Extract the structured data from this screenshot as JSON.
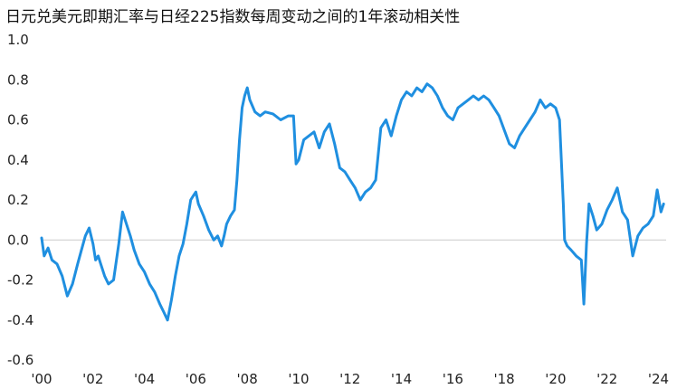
{
  "chart_data": {
    "type": "line",
    "title": "日元兑美元即期汇率与日经225指数每周变动之间的1年滚动相关性",
    "xlabel": "",
    "ylabel": "",
    "xlim": [
      2000,
      2024.3
    ],
    "ylim": [
      -0.6,
      1.0
    ],
    "y_ticks": [
      1.0,
      0.8,
      0.6,
      0.4,
      0.2,
      0.0,
      -0.2,
      -0.4,
      -0.6
    ],
    "y_tick_labels": [
      "1.0",
      "0.8",
      "0.6",
      "0.4",
      "0.2",
      "0.0",
      "-0.2",
      "-0.4",
      "-0.6"
    ],
    "x_ticks": [
      2000,
      2002,
      2004,
      2006,
      2008,
      2010,
      2012,
      2014,
      2016,
      2018,
      2020,
      2022,
      2024
    ],
    "x_tick_labels": [
      "'00",
      "'02",
      "'04",
      "'06",
      "'08",
      "'10",
      "'12",
      "'14",
      "'16",
      "'18",
      "'20",
      "'22",
      "'24"
    ],
    "zero_line": true,
    "grid": false,
    "line_color": "#1f8fe0",
    "zero_line_color": "#cccccc",
    "series": [
      {
        "x": [
          2000.0,
          2000.1,
          2000.25,
          2000.4,
          2000.6,
          2000.8,
          2001.0,
          2001.2,
          2001.4,
          2001.55,
          2001.7,
          2001.85,
          2002.0,
          2002.1,
          2002.2,
          2002.3,
          2002.45,
          2002.6,
          2002.8,
          2003.0,
          2003.15,
          2003.3,
          2003.45,
          2003.6,
          2003.8,
          2004.0,
          2004.2,
          2004.4,
          2004.6,
          2004.75,
          2004.9,
          2005.05,
          2005.2,
          2005.35,
          2005.5,
          2005.65,
          2005.8,
          2005.9,
          2006.0,
          2006.1,
          2006.3,
          2006.5,
          2006.7,
          2006.85,
          2007.0,
          2007.1,
          2007.2,
          2007.35,
          2007.5,
          2007.6,
          2007.7,
          2007.8,
          2007.9,
          2008.0,
          2008.1,
          2008.3,
          2008.5,
          2008.7,
          2009.0,
          2009.3,
          2009.6,
          2009.8,
          2009.9,
          2010.0,
          2010.2,
          2010.4,
          2010.6,
          2010.8,
          2011.0,
          2011.2,
          2011.4,
          2011.6,
          2011.8,
          2012.0,
          2012.2,
          2012.4,
          2012.6,
          2012.8,
          2013.0,
          2013.2,
          2013.4,
          2013.6,
          2013.8,
          2014.0,
          2014.2,
          2014.4,
          2014.6,
          2014.8,
          2015.0,
          2015.2,
          2015.4,
          2015.6,
          2015.8,
          2016.0,
          2016.2,
          2016.4,
          2016.6,
          2016.8,
          2017.0,
          2017.2,
          2017.4,
          2017.6,
          2017.8,
          2018.0,
          2018.2,
          2018.4,
          2018.6,
          2018.8,
          2019.0,
          2019.2,
          2019.4,
          2019.6,
          2019.8,
          2020.0,
          2020.15,
          2020.3,
          2020.35,
          2020.45,
          2020.6,
          2020.8,
          2021.0,
          2021.1,
          2021.2,
          2021.3,
          2021.45,
          2021.6,
          2021.8,
          2022.0,
          2022.2,
          2022.4,
          2022.6,
          2022.8,
          2023.0,
          2023.2,
          2023.4,
          2023.6,
          2023.8,
          2023.95,
          2024.1,
          2024.2
        ],
        "values": [
          0.01,
          -0.08,
          -0.04,
          -0.1,
          -0.12,
          -0.18,
          -0.28,
          -0.22,
          -0.12,
          -0.05,
          0.02,
          0.06,
          -0.02,
          -0.1,
          -0.08,
          -0.12,
          -0.18,
          -0.22,
          -0.2,
          -0.02,
          0.14,
          0.08,
          0.02,
          -0.05,
          -0.12,
          -0.16,
          -0.22,
          -0.26,
          -0.32,
          -0.36,
          -0.4,
          -0.3,
          -0.18,
          -0.08,
          -0.02,
          0.08,
          0.2,
          0.22,
          0.24,
          0.18,
          0.12,
          0.05,
          0.0,
          0.02,
          -0.03,
          0.02,
          0.08,
          0.12,
          0.15,
          0.3,
          0.5,
          0.66,
          0.72,
          0.76,
          0.7,
          0.64,
          0.62,
          0.64,
          0.63,
          0.6,
          0.62,
          0.62,
          0.38,
          0.4,
          0.5,
          0.52,
          0.54,
          0.46,
          0.54,
          0.58,
          0.48,
          0.36,
          0.34,
          0.3,
          0.26,
          0.2,
          0.24,
          0.26,
          0.3,
          0.56,
          0.6,
          0.52,
          0.62,
          0.7,
          0.74,
          0.72,
          0.76,
          0.74,
          0.78,
          0.76,
          0.72,
          0.66,
          0.62,
          0.6,
          0.66,
          0.68,
          0.7,
          0.72,
          0.7,
          0.72,
          0.7,
          0.66,
          0.62,
          0.55,
          0.48,
          0.46,
          0.52,
          0.56,
          0.6,
          0.64,
          0.7,
          0.66,
          0.68,
          0.66,
          0.6,
          0.18,
          0.0,
          -0.03,
          -0.05,
          -0.08,
          -0.1,
          -0.32,
          -0.02,
          0.18,
          0.12,
          0.05,
          0.08,
          0.15,
          0.2,
          0.26,
          0.14,
          0.1,
          -0.08,
          0.02,
          0.06,
          0.08,
          0.12,
          0.25,
          0.14,
          0.18
        ]
      }
    ]
  }
}
